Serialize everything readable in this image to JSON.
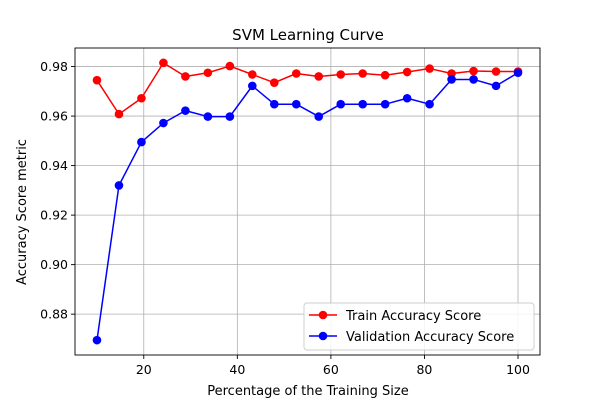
{
  "chart_data": {
    "type": "line",
    "title": "SVM Learning Curve",
    "xlabel": "Percentage of the Training Size",
    "ylabel": "Accuracy Score metric",
    "xlim": [
      5.3,
      104.7
    ],
    "ylim": [
      0.8635,
      0.9875
    ],
    "xticks": [
      20,
      40,
      60,
      80,
      100
    ],
    "yticks": [
      0.88,
      0.9,
      0.92,
      0.94,
      0.96,
      0.98
    ],
    "ytick_labels": [
      "0.88",
      "0.90",
      "0.92",
      "0.94",
      "0.96",
      "0.98"
    ],
    "grid": true,
    "legend_position": "lower-right",
    "x": [
      10,
      14.7,
      19.5,
      24.2,
      28.9,
      33.7,
      38.4,
      43.2,
      47.9,
      52.6,
      57.4,
      62.1,
      66.8,
      71.6,
      76.3,
      81.1,
      85.8,
      90.5,
      95.3,
      100
    ],
    "series": [
      {
        "name": "Train Accuracy Score",
        "color": "#ff0000",
        "values": [
          0.9745,
          0.9608,
          0.9672,
          0.9815,
          0.976,
          0.9775,
          0.9802,
          0.9768,
          0.9735,
          0.9772,
          0.976,
          0.9768,
          0.9772,
          0.9765,
          0.9778,
          0.9792,
          0.9772,
          0.9782,
          0.978,
          0.978
        ]
      },
      {
        "name": "Validation Accuracy Score",
        "color": "#0000ff",
        "values": [
          0.8695,
          0.932,
          0.9495,
          0.9572,
          0.9622,
          0.9598,
          0.9598,
          0.9722,
          0.9648,
          0.9648,
          0.9598,
          0.9648,
          0.9648,
          0.9648,
          0.9672,
          0.9648,
          0.9748,
          0.9748,
          0.9722,
          0.9775
        ]
      }
    ]
  }
}
